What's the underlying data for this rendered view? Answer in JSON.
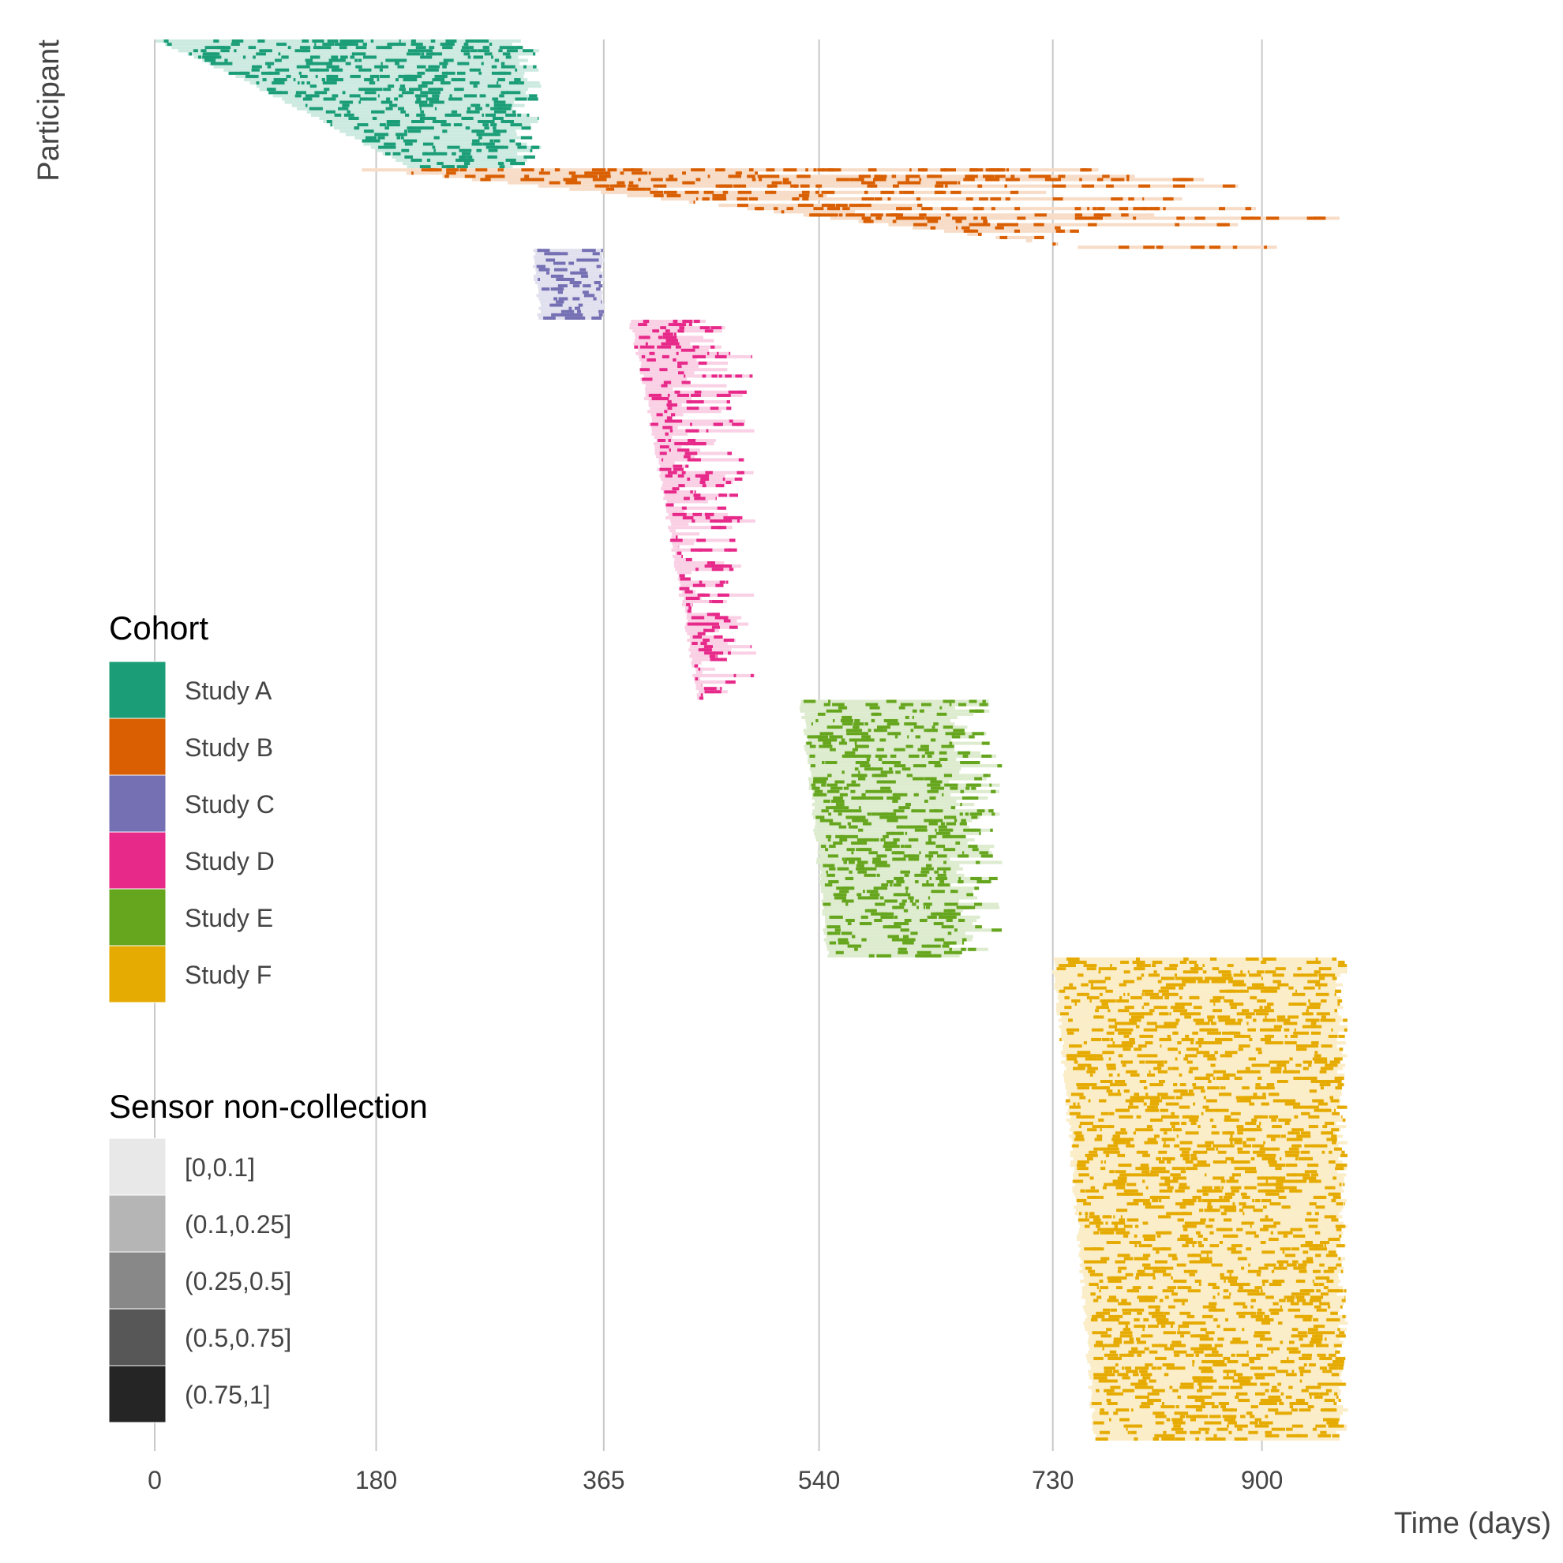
{
  "chart_data": {
    "type": "heatmap",
    "xlabel": "Time (days)",
    "ylabel": "Participant",
    "x_ticks": [
      0,
      180,
      365,
      540,
      730,
      900
    ],
    "xlim": [
      0,
      970
    ],
    "grid": {
      "vertical": true,
      "horizontal": false
    },
    "legends": {
      "cohort": {
        "title": "Cohort",
        "placement": "left",
        "entries": [
          {
            "label": "Study A",
            "color": "#1b9e77"
          },
          {
            "label": "Study B",
            "color": "#d95f02"
          },
          {
            "label": "Study C",
            "color": "#7570b3"
          },
          {
            "label": "Study D",
            "color": "#e7298a"
          },
          {
            "label": "Study E",
            "color": "#66a61e"
          },
          {
            "label": "Study F",
            "color": "#e6ab02"
          }
        ]
      },
      "non_collection": {
        "title": "Sensor non-collection",
        "placement": "bottom-left",
        "entries": [
          {
            "label": "[0,0.1]",
            "color": "#e8e8e8"
          },
          {
            "label": "(0.1,0.25]",
            "color": "#b5b5b5"
          },
          {
            "label": "(0.25,0.5]",
            "color": "#888888"
          },
          {
            "label": "(0.5,0.75]",
            "color": "#575757"
          },
          {
            "label": "(0.75,1]",
            "color": "#252525"
          }
        ]
      }
    },
    "cohorts": [
      {
        "name": "Study A",
        "participants": 40,
        "start_first": 0,
        "start_last": 205,
        "end_min": 290,
        "end_max": 315
      },
      {
        "name": "Study B",
        "participants": 25,
        "start_first": 170,
        "start_last": 750,
        "end_min": 400,
        "end_max": 970
      },
      {
        "name": "Study C",
        "participants": 22,
        "start_first": 307,
        "start_last": 313,
        "end_min": 362,
        "end_max": 366
      },
      {
        "name": "Study D",
        "participants": 118,
        "start_first": 386,
        "start_last": 442,
        "end_min": 420,
        "end_max": 489
      },
      {
        "name": "Study E",
        "participants": 80,
        "start_first": 525,
        "start_last": 547,
        "end_min": 645,
        "end_max": 690
      },
      {
        "name": "Study F",
        "participants": 150,
        "start_first": 730,
        "start_last": 764,
        "end_min": 960,
        "end_max": 970
      }
    ]
  }
}
